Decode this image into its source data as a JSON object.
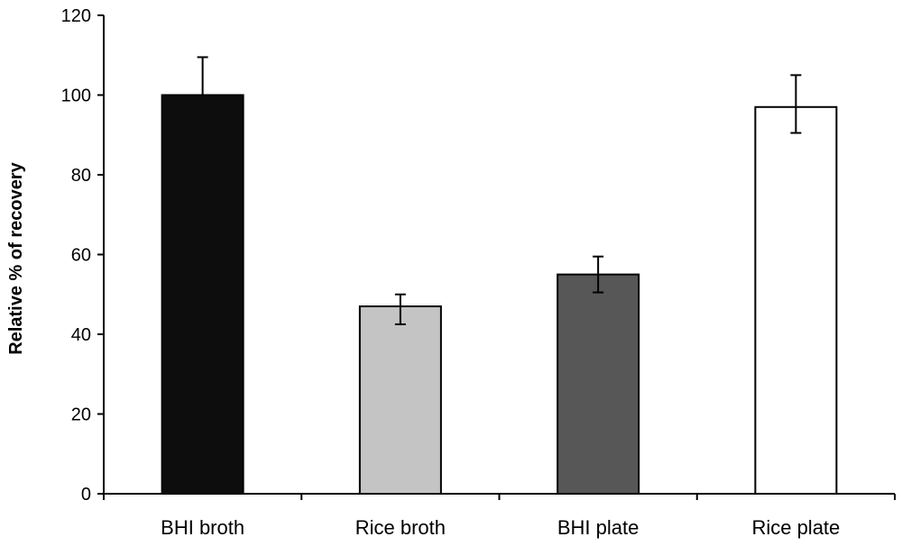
{
  "chart_data": {
    "type": "bar",
    "title": "",
    "xlabel": "",
    "ylabel": "Relative % of recovery",
    "ylim": [
      0,
      120
    ],
    "yticks": [
      0,
      20,
      40,
      60,
      80,
      100,
      120
    ],
    "grid": false,
    "categories": [
      "BHI broth",
      "Rice broth",
      "BHI plate",
      "Rice plate"
    ],
    "values": [
      100,
      47,
      55,
      97
    ],
    "error_low": [
      100,
      42.5,
      50.5,
      90.5
    ],
    "error_high": [
      109.5,
      50,
      59.5,
      105
    ],
    "bar_colors": [
      "#0d0d0d",
      "#c4c4c4",
      "#575757",
      "#ffffff"
    ],
    "bar_edge_color": "#000000"
  }
}
